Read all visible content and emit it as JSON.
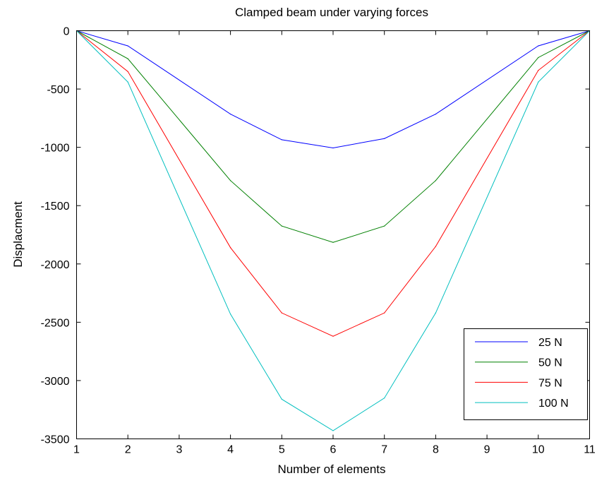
{
  "chart_data": {
    "type": "line",
    "title": "Clamped beam under varying forces",
    "xlabel": "Number of elements",
    "ylabel": "Displacment",
    "xlim": [
      1,
      11
    ],
    "ylim": [
      -3500,
      0
    ],
    "xticks": [
      1,
      2,
      3,
      4,
      5,
      6,
      7,
      8,
      9,
      10,
      11
    ],
    "yticks": [
      0,
      -500,
      -1000,
      -1500,
      -2000,
      -2500,
      -3000,
      -3500
    ],
    "grid": false,
    "legend_position": "bottom-right",
    "x": [
      1,
      2,
      4,
      5,
      6,
      7,
      8,
      10,
      11
    ],
    "series": [
      {
        "name": "25 N",
        "color": "#0000ff",
        "values": [
          0,
          -130,
          -715,
          -935,
          -1005,
          -925,
          -715,
          -130,
          0
        ]
      },
      {
        "name": "50 N",
        "color": "#008000",
        "values": [
          0,
          -240,
          -1285,
          -1675,
          -1815,
          -1675,
          -1285,
          -230,
          0
        ]
      },
      {
        "name": "75 N",
        "color": "#ff0000",
        "values": [
          0,
          -350,
          -1860,
          -2420,
          -2620,
          -2420,
          -1850,
          -340,
          0
        ]
      },
      {
        "name": "100 N",
        "color": "#00bfbf",
        "values": [
          0,
          -440,
          -2430,
          -3160,
          -3430,
          -3150,
          -2420,
          -440,
          0
        ]
      }
    ]
  }
}
